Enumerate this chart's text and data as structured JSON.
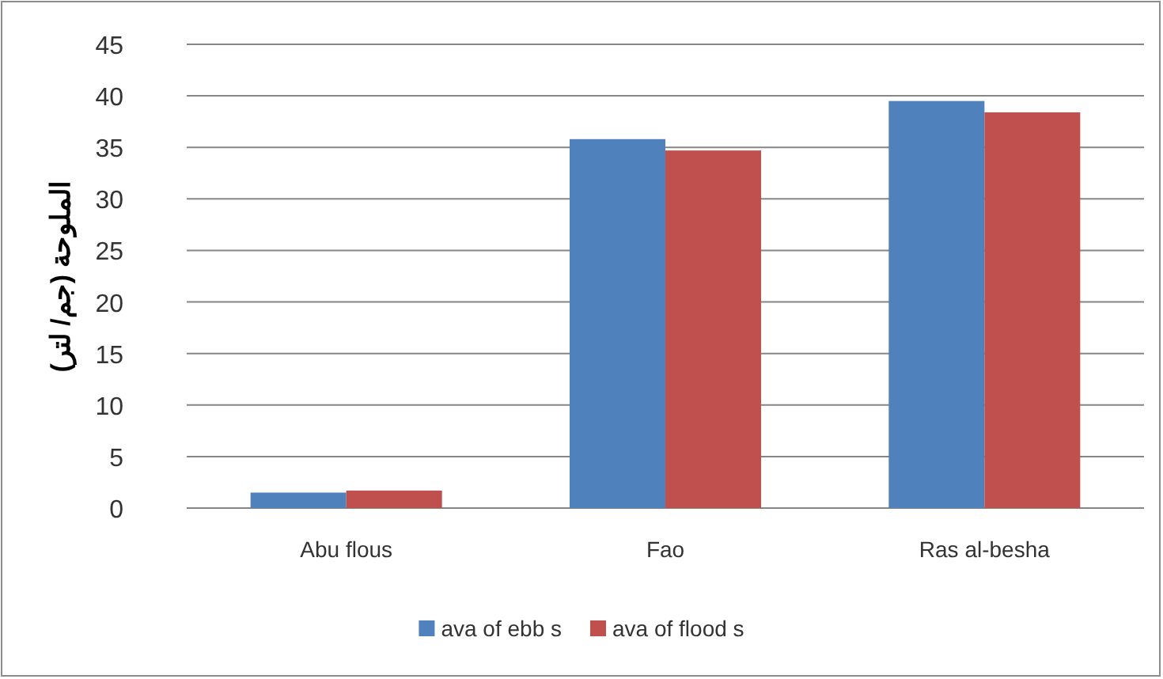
{
  "chart_data": {
    "type": "bar",
    "ylabel": "الملوحة (جم/ لتر)",
    "categories": [
      "Abu flous",
      "Fao",
      "Ras al-besha"
    ],
    "series": [
      {
        "name": "ava of ebb s",
        "color": "#4f81bd",
        "values": [
          1.5,
          35.8,
          39.5
        ]
      },
      {
        "name": "ava of flood s",
        "color": "#c0504d",
        "values": [
          1.7,
          34.7,
          38.4
        ]
      }
    ],
    "ylim": [
      0,
      45
    ],
    "yticks": [
      0,
      5,
      10,
      15,
      20,
      25,
      30,
      35,
      40,
      45
    ],
    "grid": "y",
    "legend": "bottom"
  }
}
